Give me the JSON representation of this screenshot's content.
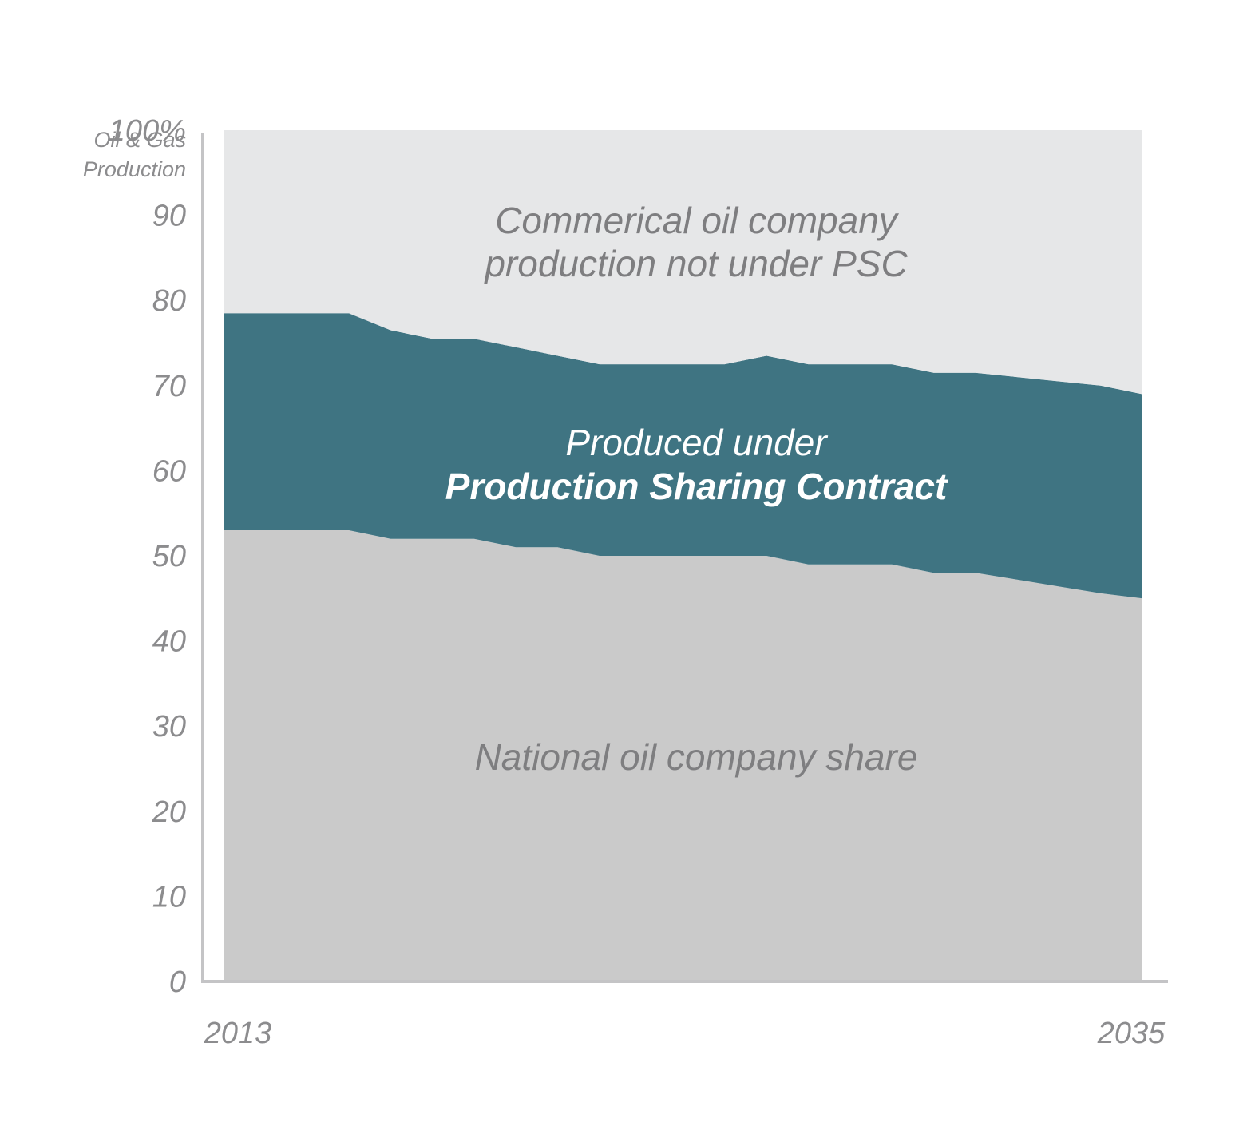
{
  "chart_data": {
    "type": "area",
    "stacked": true,
    "x_range": [
      2013,
      2035
    ],
    "x_ticks": [
      "2013",
      "2035"
    ],
    "ylim": [
      0,
      100
    ],
    "y_ticks": [
      "0",
      "10",
      "20",
      "30",
      "40",
      "50",
      "60",
      "70",
      "80",
      "90",
      "100%"
    ],
    "ylabel": "Oil & Gas Production",
    "x": [
      2013,
      2014,
      2015,
      2016,
      2017,
      2018,
      2019,
      2020,
      2021,
      2022,
      2023,
      2024,
      2025,
      2026,
      2027,
      2028,
      2029,
      2030,
      2031,
      2032,
      2033,
      2034,
      2035
    ],
    "series": [
      {
        "name": "National oil company share",
        "color": "#cacaca",
        "values": [
          53,
          53,
          53,
          53,
          52,
          52,
          52,
          51,
          51,
          50,
          50,
          50,
          50,
          50,
          49,
          49,
          49,
          48,
          48,
          47.2,
          46.4,
          45.6,
          45
        ]
      },
      {
        "name": "Produced under Production Sharing Contract",
        "name_lines": [
          "Produced under",
          "Production Sharing Contract"
        ],
        "color": "#3f7482",
        "values": [
          25.5,
          25.5,
          25.5,
          25.5,
          24.5,
          23.5,
          23.5,
          23.5,
          22.5,
          22.5,
          22.5,
          22.5,
          22.5,
          23.5,
          23.5,
          23.5,
          23.5,
          23.5,
          23.5,
          23.8,
          24.1,
          24.4,
          24
        ]
      },
      {
        "name": "Commerical oil company production not under PSC",
        "name_lines": [
          "Commerical oil company",
          "production not under PSC"
        ],
        "color": "#e6e7e8",
        "values": [
          21.5,
          21.5,
          21.5,
          21.5,
          23.5,
          24.5,
          24.5,
          25.5,
          26.5,
          27.5,
          27.5,
          27.5,
          27.5,
          26.5,
          27.5,
          27.5,
          27.5,
          28.5,
          28.5,
          29,
          29.5,
          30,
          31
        ]
      }
    ],
    "axis_color": "#c4c4c6",
    "tick_color": "#8c8c8e",
    "grid": false,
    "legend": "none"
  }
}
